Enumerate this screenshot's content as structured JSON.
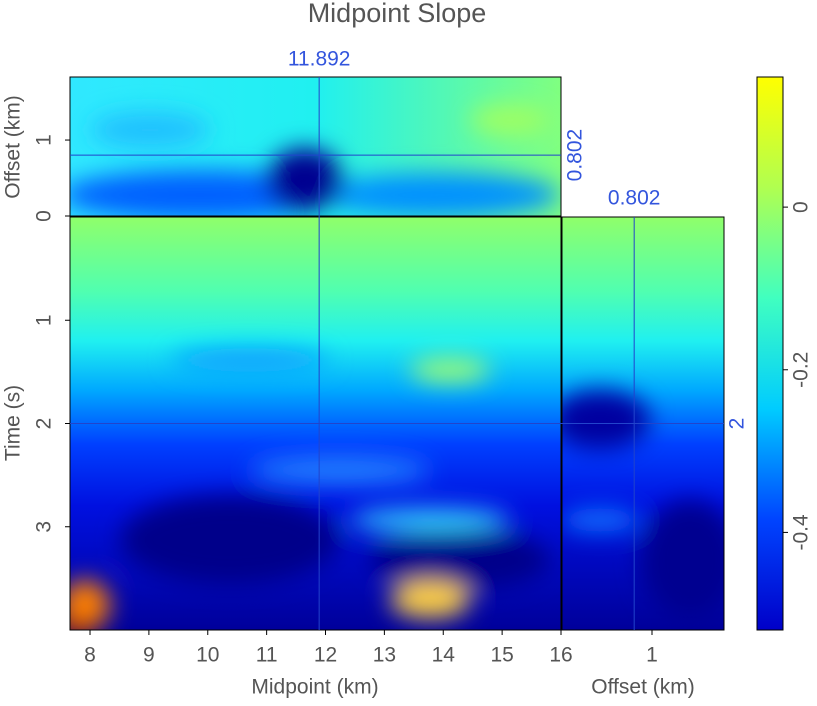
{
  "chart_data": {
    "type": "cube",
    "title": "Midpoint Slope",
    "x_label": "Midpoint (km)",
    "y_label": "Time (s)",
    "top_label": "Offset (km)",
    "side_label": "Offset (km)",
    "xlim": [
      7.66,
      16
    ],
    "xticks": [
      8,
      9,
      10,
      11,
      12,
      13,
      14,
      15,
      16
    ],
    "ylim": [
      0,
      4
    ],
    "yticks": [
      1,
      2,
      3
    ],
    "top_lim": [
      0,
      1.83
    ],
    "top_ticks": [
      0,
      1
    ],
    "side_lim": [
      0,
      1.8
    ],
    "side_ticks": [
      1
    ],
    "slices": {
      "midpoint": 11.892,
      "offset": 0.802,
      "time": 2
    },
    "slice_labels": {
      "midpoint": "11.892",
      "offset": "0.802",
      "time": "2"
    },
    "clim": [
      -0.52,
      0.16
    ],
    "cticks": [
      0,
      -0.2,
      -0.4
    ],
    "colormap": [
      "#0000c8",
      "#0044ff",
      "#00ccff",
      "#40ffc0",
      "#b0ff50",
      "#ffff00"
    ],
    "slice_color": "#2244cc"
  }
}
